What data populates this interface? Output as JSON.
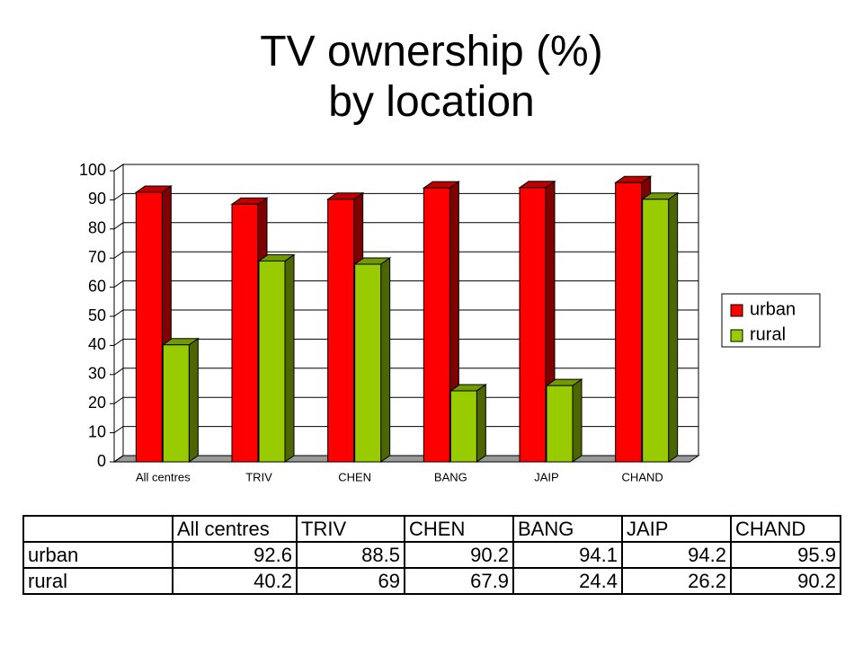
{
  "chart_data": {
    "type": "bar3d",
    "title": "TV ownership (%) by location",
    "categories": [
      "All centres",
      "TRIV",
      "CHEN",
      "BANG",
      "JAIP",
      "CHAND"
    ],
    "series": [
      {
        "name": "urban",
        "color": "#ff0000",
        "values": [
          92.6,
          88.5,
          90.2,
          94.1,
          94.2,
          95.9
        ]
      },
      {
        "name": "rural",
        "color": "#99cc00",
        "values": [
          40.2,
          69,
          67.9,
          24.4,
          26.2,
          90.2
        ]
      }
    ],
    "ylim": [
      0,
      100
    ],
    "yticks": [
      0,
      10,
      20,
      30,
      40,
      50,
      60,
      70,
      80,
      90,
      100
    ],
    "grid": true,
    "legend": "right",
    "data_table": true
  }
}
